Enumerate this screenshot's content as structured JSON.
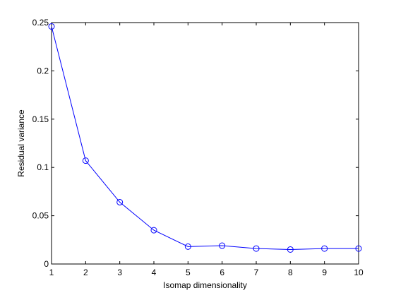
{
  "chart_data": {
    "type": "line",
    "title": "",
    "xlabel": "Isomap dimensionality",
    "ylabel": "Residual variance",
    "xlim": [
      1,
      10
    ],
    "ylim": [
      0,
      0.25
    ],
    "x_ticks": [
      1,
      2,
      3,
      4,
      5,
      6,
      7,
      8,
      9,
      10
    ],
    "x_tick_labels": [
      "1",
      "2",
      "3",
      "4",
      "5",
      "6",
      "7",
      "8",
      "9",
      "10"
    ],
    "y_ticks": [
      0,
      0.05,
      0.1,
      0.15,
      0.2,
      0.25
    ],
    "y_tick_labels": [
      "0",
      "0.05",
      "0.1",
      "0.15",
      "0.2",
      "0.25"
    ],
    "grid": false,
    "legend": "none",
    "marker": "circle",
    "series": [
      {
        "color": "#0000ff",
        "x": [
          1,
          2,
          3,
          4,
          5,
          6,
          7,
          8,
          9,
          10
        ],
        "y": [
          0.246,
          0.107,
          0.064,
          0.035,
          0.018,
          0.019,
          0.016,
          0.015,
          0.016,
          0.016
        ]
      }
    ]
  }
}
